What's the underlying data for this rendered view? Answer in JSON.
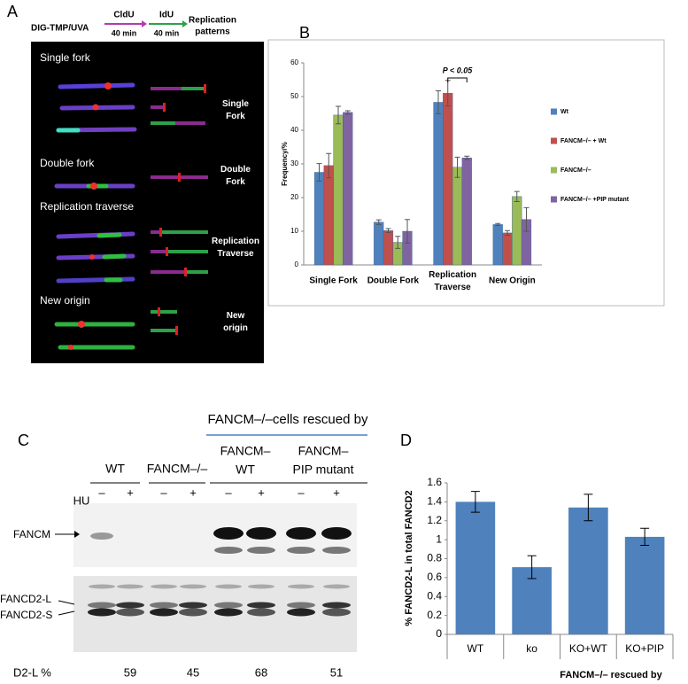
{
  "panel_a": {
    "label": "A",
    "header": {
      "start": "DIG-TMP/UVA",
      "cldu": "CldU",
      "cldu_time": "40 min",
      "idu": "IdU",
      "idu_time": "40 min",
      "result": "Replication\npatterns"
    },
    "images": [
      "Single fork",
      "Double fork",
      "Replication traverse",
      "New origin"
    ],
    "patterns": [
      "Single\nFork",
      "Double\nFork",
      "Replication\nTraverse",
      "New\norigin"
    ]
  },
  "chart_data": [
    {
      "type": "bar",
      "label": "B",
      "ylabel": "Frequency/%",
      "categories": [
        "Single Fork",
        "Double Fork",
        "Replication\nTraverse",
        "New Origin"
      ],
      "series": [
        {
          "name": "Wt",
          "color": "#4f81bd",
          "values": [
            27.5,
            12.7,
            48.3,
            12.0
          ],
          "errors": [
            2.6,
            0.7,
            3.4,
            0.3
          ]
        },
        {
          "name": "FANCM–/– + Wt",
          "color": "#c0504d",
          "values": [
            29.5,
            10.2,
            51.0,
            9.5
          ],
          "errors": [
            3.6,
            0.6,
            3.8,
            0.7
          ]
        },
        {
          "name": "FANCM–/–",
          "color": "#9bbb59",
          "values": [
            44.5,
            6.7,
            29.0,
            20.3
          ],
          "errors": [
            2.6,
            1.8,
            3.0,
            1.5
          ]
        },
        {
          "name": "FANCM–/– +PIP mutant",
          "color": "#8064a2",
          "values": [
            45.3,
            10.0,
            31.8,
            13.5
          ],
          "errors": [
            0.5,
            3.5,
            0.5,
            3.5
          ]
        }
      ],
      "annotation": "P < 0.05",
      "ylim": [
        0,
        60
      ],
      "yticks": [
        0,
        10,
        20,
        30,
        40,
        50,
        60
      ],
      "grid": false,
      "legend": "right"
    },
    {
      "type": "bar",
      "label": "D",
      "ylabel": "% FANCD2-L in total FANCD2",
      "xlabel": "FANCM–/– rescued by",
      "categories": [
        "WT",
        "ko",
        "KO+WT",
        "KO+PIP"
      ],
      "values": [
        1.4,
        0.71,
        1.34,
        1.03
      ],
      "errors": [
        0.11,
        0.12,
        0.14,
        0.09
      ],
      "color": "#4f81bd",
      "ylim": [
        0,
        1.6
      ],
      "yticks": [
        0,
        0.2,
        0.4,
        0.6,
        0.8,
        1,
        1.2,
        1.4,
        1.6
      ],
      "grid": false
    }
  ],
  "panel_c": {
    "label": "C",
    "rescue_header": "FANCM–/–cells rescued by",
    "groups": [
      "WT",
      "FANCM–/–",
      "FANCM–\nWT",
      "FANCM–\nPIP mutant"
    ],
    "treatment": "HU",
    "lanes": [
      "–",
      "+",
      "–",
      "+",
      "–",
      "+",
      "–",
      "+"
    ],
    "proteins": [
      "FANCM",
      "FANCD2-L",
      "FANCD2-S"
    ],
    "quant_label": "D2-L  %",
    "quant": [
      59,
      45,
      68,
      51
    ]
  }
}
